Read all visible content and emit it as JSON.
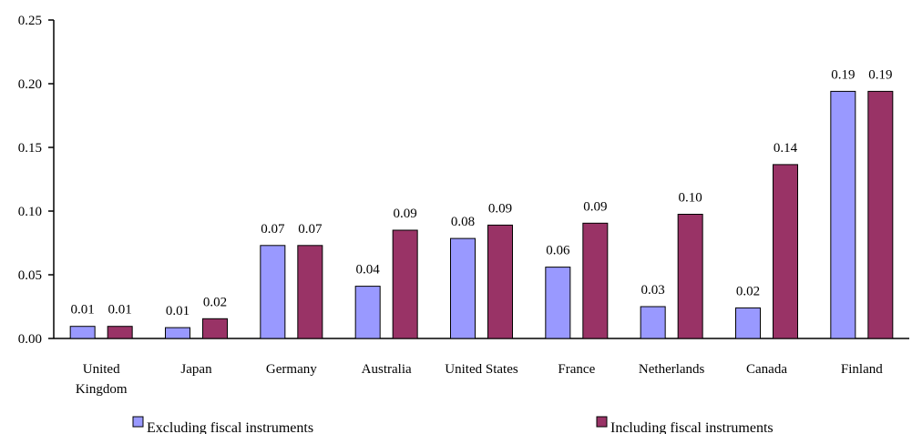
{
  "chart_data": {
    "type": "bar",
    "title": "",
    "xlabel": "",
    "ylabel": "",
    "ylim": [
      0,
      0.25
    ],
    "yticks": [
      "0.00",
      "0.05",
      "0.10",
      "0.15",
      "0.20",
      "0.25"
    ],
    "grid": false,
    "legend_position": "bottom",
    "categories": [
      [
        "United",
        "Kingdom"
      ],
      [
        "Japan"
      ],
      [
        "Germany"
      ],
      [
        "Australia"
      ],
      [
        "United States"
      ],
      [
        "France"
      ],
      [
        "Netherlands"
      ],
      [
        "Canada"
      ],
      [
        "Finland"
      ]
    ],
    "series": [
      {
        "name": "Excluding fiscal instruments",
        "color": "#9999ff",
        "values": [
          0.0095,
          0.0085,
          0.073,
          0.041,
          0.0785,
          0.056,
          0.025,
          0.024,
          0.194
        ],
        "labels": [
          "0.01",
          "0.01",
          "0.07",
          "0.04",
          "0.08",
          "0.06",
          "0.03",
          "0.02",
          "0.19"
        ]
      },
      {
        "name": "Including fiscal instruments",
        "color": "#993366",
        "values": [
          0.0095,
          0.0155,
          0.073,
          0.085,
          0.089,
          0.0905,
          0.0975,
          0.1365,
          0.194
        ],
        "labels": [
          "0.01",
          "0.02",
          "0.07",
          "0.09",
          "0.09",
          "0.09",
          "0.10",
          "0.14",
          "0.19"
        ]
      }
    ]
  }
}
